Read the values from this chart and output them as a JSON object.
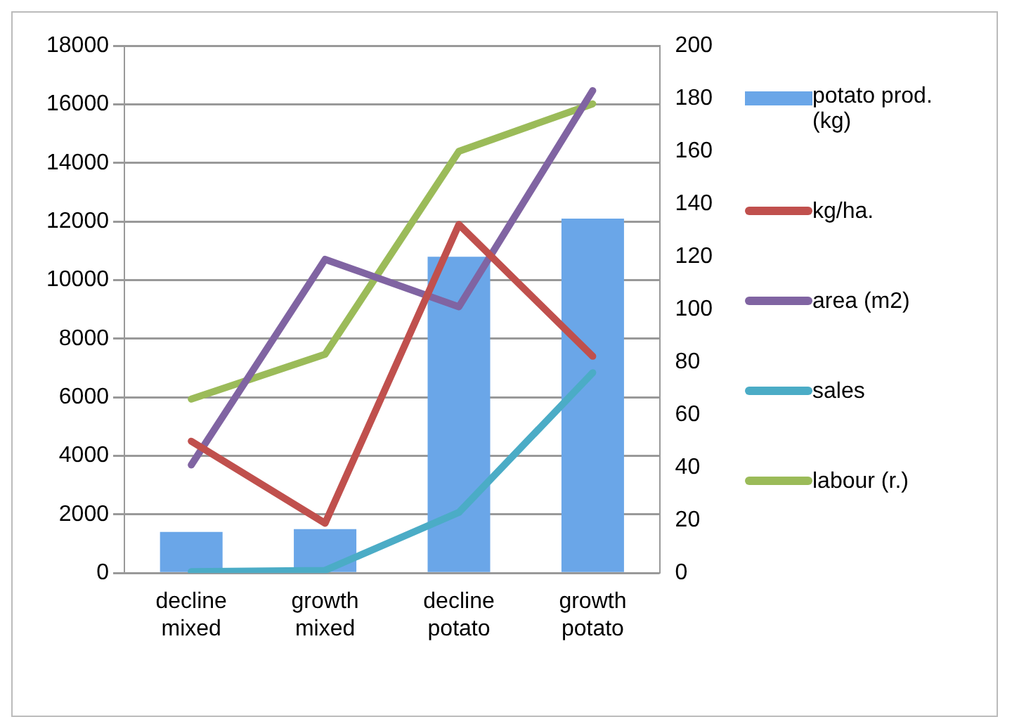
{
  "chart_data": {
    "type": "bar",
    "categories": [
      "decline mixed",
      "growth mixed",
      "decline potato",
      "growth potato"
    ],
    "series": [
      {
        "name": "potato prod. (kg)",
        "color": "#6aa6e8",
        "values": [
          1400,
          1500,
          10800,
          12100
        ]
      },
      {
        "name": "kg/ha.",
        "type": "line",
        "color": "#c0504d",
        "values": [
          4500,
          1700,
          11900,
          7400
        ]
      },
      {
        "name": "area (m2)",
        "type": "line",
        "axis": "y2",
        "color": "#8064a2",
        "values": [
          41,
          119,
          101,
          183
        ]
      },
      {
        "name": "sales",
        "type": "line",
        "axis": "y2",
        "color": "#4bacc6",
        "values": [
          0.5,
          1,
          23,
          76
        ]
      },
      {
        "name": "labour (r.)",
        "type": "line",
        "axis": "y2",
        "color": "#9bbb59",
        "values": [
          66,
          83,
          160,
          178
        ]
      }
    ],
    "ylim": [
      0,
      18000
    ],
    "yticks": [
      0,
      2000,
      4000,
      6000,
      8000,
      10000,
      12000,
      14000,
      16000,
      18000
    ],
    "y2lim": [
      0,
      200
    ],
    "y2ticks": [
      0,
      20,
      40,
      60,
      80,
      100,
      120,
      140,
      160,
      180,
      200
    ],
    "grid": "y",
    "legend": "right",
    "marker": "none"
  }
}
